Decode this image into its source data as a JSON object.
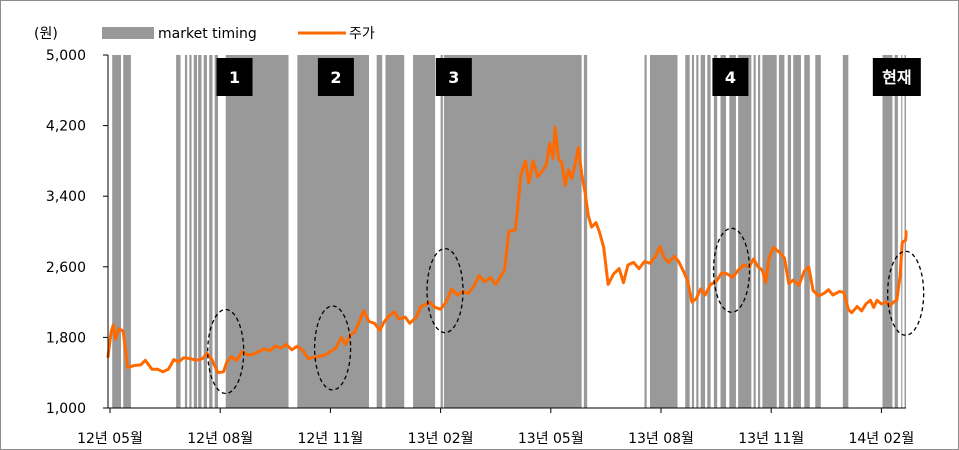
{
  "chart_data": {
    "type": "line",
    "unit_label": "(원)",
    "legend": {
      "position": "top-left",
      "items": [
        {
          "label": "market timing",
          "kind": "bar",
          "color": "#999999"
        },
        {
          "label": "주가",
          "kind": "line",
          "color": "#FF6A00"
        }
      ]
    },
    "yaxis": {
      "min": 1000,
      "max": 5000,
      "ticks": [
        1000,
        1800,
        2600,
        3400,
        4200,
        5000
      ],
      "tick_labels": [
        "1,000",
        "1,800",
        "2,600",
        "3,400",
        "4,200",
        "5,000"
      ]
    },
    "xaxis": {
      "tick_labels": [
        "12년 05월",
        "12년 08월",
        "12년 11월",
        "13년 02월",
        "13년 05월",
        "13년 08월",
        "13년 11월",
        "14년 02월"
      ]
    },
    "grid": false,
    "callouts": [
      {
        "label": "1",
        "tick": 1.13
      },
      {
        "label": "2",
        "tick": 2.05
      },
      {
        "label": "3",
        "tick": 3.12
      },
      {
        "label": "4",
        "tick": 5.63
      },
      {
        "label": "현재",
        "tick": 7.14
      }
    ],
    "highlight_ellipses": [
      {
        "tick": 1.05,
        "price": 1640
      },
      {
        "tick": 2.02,
        "price": 1680
      },
      {
        "tick": 3.04,
        "price": 2330
      },
      {
        "tick": 5.64,
        "price": 2560
      },
      {
        "tick": 7.22,
        "price": 2300
      }
    ],
    "market_timing_periods": [
      [
        0.02,
        0.1
      ],
      [
        0.12,
        0.19
      ],
      [
        0.6,
        0.64
      ],
      [
        0.68,
        0.7
      ],
      [
        0.72,
        0.74
      ],
      [
        0.76,
        0.79
      ],
      [
        0.8,
        0.83
      ],
      [
        0.85,
        0.88
      ],
      [
        0.9,
        0.93
      ],
      [
        0.95,
        0.98
      ],
      [
        1.05,
        1.62
      ],
      [
        1.7,
        2.35
      ],
      [
        2.42,
        2.47
      ],
      [
        2.5,
        2.67
      ],
      [
        2.75,
        2.95
      ],
      [
        3.0,
        3.02
      ],
      [
        3.03,
        4.28
      ],
      [
        4.3,
        4.33
      ],
      [
        4.85,
        4.87
      ],
      [
        4.9,
        5.15
      ],
      [
        5.22,
        5.26
      ],
      [
        5.28,
        5.3
      ],
      [
        5.32,
        5.34
      ],
      [
        5.36,
        5.4
      ],
      [
        5.42,
        5.45
      ],
      [
        5.48,
        5.51
      ],
      [
        5.54,
        5.59
      ],
      [
        5.62,
        5.68
      ],
      [
        5.7,
        5.82
      ],
      [
        5.84,
        5.86
      ],
      [
        5.88,
        5.9
      ],
      [
        5.92,
        6.05
      ],
      [
        6.07,
        6.12
      ],
      [
        6.15,
        6.18
      ],
      [
        6.2,
        6.27
      ],
      [
        6.3,
        6.35
      ],
      [
        6.4,
        6.45
      ],
      [
        6.65,
        6.7
      ],
      [
        7.01,
        7.1
      ],
      [
        7.12,
        7.15
      ],
      [
        7.18,
        7.19
      ],
      [
        7.21,
        7.26
      ]
    ],
    "series": [
      {
        "name": "주가",
        "color": "#FF6A00",
        "points": [
          [
            -0.02,
            1580
          ],
          [
            0.01,
            1860
          ],
          [
            0.03,
            1940
          ],
          [
            0.05,
            1780
          ],
          [
            0.08,
            1900
          ],
          [
            0.12,
            1870
          ],
          [
            0.16,
            1460
          ],
          [
            0.22,
            1480
          ],
          [
            0.28,
            1490
          ],
          [
            0.32,
            1540
          ],
          [
            0.38,
            1440
          ],
          [
            0.43,
            1440
          ],
          [
            0.48,
            1410
          ],
          [
            0.53,
            1440
          ],
          [
            0.58,
            1550
          ],
          [
            0.62,
            1520
          ],
          [
            0.67,
            1570
          ],
          [
            0.73,
            1560
          ],
          [
            0.78,
            1540
          ],
          [
            0.84,
            1560
          ],
          [
            0.88,
            1620
          ],
          [
            0.92,
            1560
          ],
          [
            0.95,
            1480
          ],
          [
            0.98,
            1400
          ],
          [
            1.03,
            1410
          ],
          [
            1.06,
            1520
          ],
          [
            1.1,
            1580
          ],
          [
            1.15,
            1540
          ],
          [
            1.2,
            1640
          ],
          [
            1.25,
            1600
          ],
          [
            1.3,
            1610
          ],
          [
            1.35,
            1640
          ],
          [
            1.4,
            1670
          ],
          [
            1.45,
            1650
          ],
          [
            1.5,
            1700
          ],
          [
            1.55,
            1680
          ],
          [
            1.6,
            1720
          ],
          [
            1.65,
            1660
          ],
          [
            1.7,
            1700
          ],
          [
            1.75,
            1650
          ],
          [
            1.8,
            1560
          ],
          [
            1.88,
            1580
          ],
          [
            1.95,
            1600
          ],
          [
            2.0,
            1640
          ],
          [
            2.05,
            1680
          ],
          [
            2.1,
            1800
          ],
          [
            2.14,
            1720
          ],
          [
            2.18,
            1830
          ],
          [
            2.22,
            1860
          ],
          [
            2.26,
            1970
          ],
          [
            2.3,
            2100
          ],
          [
            2.35,
            1980
          ],
          [
            2.4,
            1960
          ],
          [
            2.45,
            1880
          ],
          [
            2.48,
            1960
          ],
          [
            2.52,
            2030
          ],
          [
            2.58,
            2090
          ],
          [
            2.62,
            2010
          ],
          [
            2.68,
            2030
          ],
          [
            2.72,
            1960
          ],
          [
            2.78,
            2030
          ],
          [
            2.82,
            2150
          ],
          [
            2.86,
            2170
          ],
          [
            2.9,
            2200
          ],
          [
            2.95,
            2140
          ],
          [
            3.0,
            2120
          ],
          [
            3.05,
            2200
          ],
          [
            3.1,
            2350
          ],
          [
            3.15,
            2280
          ],
          [
            3.2,
            2320
          ],
          [
            3.25,
            2300
          ],
          [
            3.3,
            2380
          ],
          [
            3.35,
            2500
          ],
          [
            3.4,
            2430
          ],
          [
            3.45,
            2480
          ],
          [
            3.5,
            2400
          ],
          [
            3.55,
            2500
          ],
          [
            3.58,
            2560
          ],
          [
            3.62,
            3000
          ],
          [
            3.68,
            3020
          ],
          [
            3.73,
            3650
          ],
          [
            3.77,
            3800
          ],
          [
            3.8,
            3550
          ],
          [
            3.84,
            3800
          ],
          [
            3.88,
            3620
          ],
          [
            3.92,
            3680
          ],
          [
            3.96,
            3760
          ],
          [
            3.99,
            4000
          ],
          [
            4.02,
            3830
          ],
          [
            4.04,
            4180
          ],
          [
            4.07,
            3820
          ],
          [
            4.1,
            3780
          ],
          [
            4.13,
            3520
          ],
          [
            4.16,
            3700
          ],
          [
            4.19,
            3600
          ],
          [
            4.22,
            3750
          ],
          [
            4.25,
            3950
          ],
          [
            4.28,
            3650
          ],
          [
            4.31,
            3450
          ],
          [
            4.34,
            3180
          ],
          [
            4.37,
            3050
          ],
          [
            4.41,
            3100
          ],
          [
            4.44,
            3000
          ],
          [
            4.48,
            2820
          ],
          [
            4.52,
            2400
          ],
          [
            4.57,
            2520
          ],
          [
            4.62,
            2580
          ],
          [
            4.66,
            2420
          ],
          [
            4.7,
            2620
          ],
          [
            4.75,
            2650
          ],
          [
            4.8,
            2580
          ],
          [
            4.85,
            2660
          ],
          [
            4.9,
            2640
          ],
          [
            4.95,
            2720
          ],
          [
            4.99,
            2830
          ],
          [
            5.03,
            2700
          ],
          [
            5.07,
            2650
          ],
          [
            5.12,
            2720
          ],
          [
            5.16,
            2660
          ],
          [
            5.2,
            2560
          ],
          [
            5.24,
            2450
          ],
          [
            5.28,
            2200
          ],
          [
            5.32,
            2240
          ],
          [
            5.36,
            2350
          ],
          [
            5.4,
            2280
          ],
          [
            5.45,
            2400
          ],
          [
            5.5,
            2430
          ],
          [
            5.55,
            2530
          ],
          [
            5.6,
            2520
          ],
          [
            5.65,
            2480
          ],
          [
            5.7,
            2560
          ],
          [
            5.75,
            2620
          ],
          [
            5.8,
            2600
          ],
          [
            5.84,
            2690
          ],
          [
            5.88,
            2600
          ],
          [
            5.92,
            2560
          ],
          [
            5.95,
            2420
          ],
          [
            5.98,
            2700
          ],
          [
            6.02,
            2820
          ],
          [
            6.07,
            2770
          ],
          [
            6.12,
            2700
          ],
          [
            6.16,
            2410
          ],
          [
            6.2,
            2450
          ],
          [
            6.25,
            2390
          ],
          [
            6.3,
            2550
          ],
          [
            6.34,
            2600
          ],
          [
            6.38,
            2330
          ],
          [
            6.43,
            2270
          ],
          [
            6.48,
            2300
          ],
          [
            6.52,
            2340
          ],
          [
            6.56,
            2280
          ],
          [
            6.62,
            2320
          ],
          [
            6.66,
            2310
          ],
          [
            6.7,
            2120
          ],
          [
            6.73,
            2080
          ],
          [
            6.78,
            2150
          ],
          [
            6.82,
            2100
          ],
          [
            6.86,
            2180
          ],
          [
            6.9,
            2220
          ],
          [
            6.93,
            2140
          ],
          [
            6.96,
            2220
          ],
          [
            7.0,
            2180
          ],
          [
            7.04,
            2200
          ],
          [
            7.08,
            2160
          ],
          [
            7.11,
            2200
          ],
          [
            7.14,
            2220
          ],
          [
            7.17,
            2500
          ],
          [
            7.19,
            2880
          ],
          [
            7.22,
            2900
          ],
          [
            7.25,
            2960
          ],
          [
            7.28,
            3000
          ]
        ]
      }
    ]
  }
}
